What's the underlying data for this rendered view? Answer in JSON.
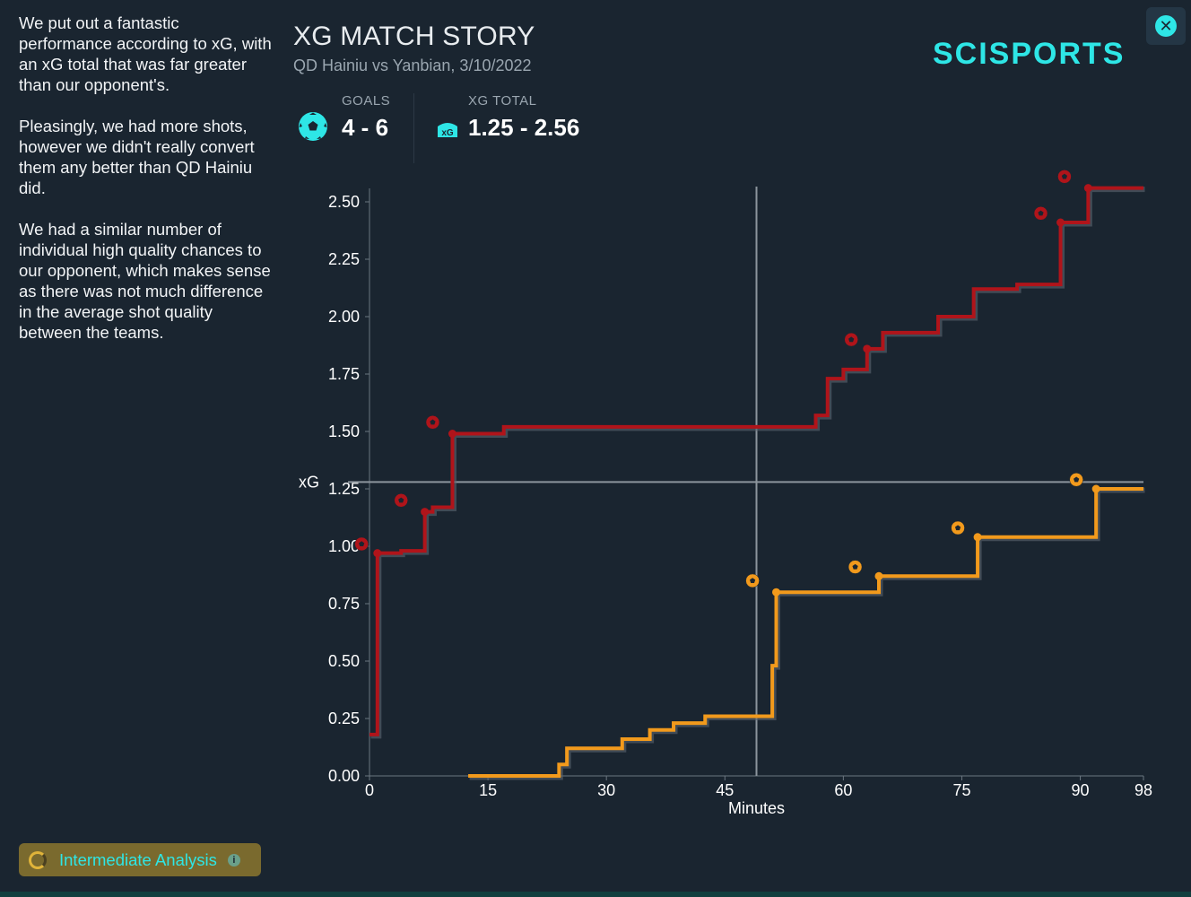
{
  "summary": {
    "paragraphs": [
      "We put out a fantastic performance according to xG, with an xG total that was far greater than our opponent's.",
      "Pleasingly, we had more shots, however we didn't really convert them any better than QD Hainiu did.",
      "We had a similar number of individual high quality chances to our opponent, which makes sense as there was not much difference in the average shot quality between the teams."
    ]
  },
  "header": {
    "title": "XG MATCH STORY",
    "subtitle": "QD Hainiu vs Yanbian, 3/10/2022",
    "goals_label": "GOALS",
    "goals_value": "4 - 6",
    "xg_label": "XG TOTAL",
    "xg_value": "1.25 - 2.56",
    "xg_icon_text": "xG"
  },
  "logo": {
    "text": "SCISPORTS"
  },
  "footer": {
    "level_label": "Intermediate Analysis",
    "info_glyph": "i"
  },
  "colors": {
    "accent": "#2ee6e6",
    "home": "#f29a1c",
    "away": "#b0141a",
    "background": "#1a2530"
  },
  "icons": {
    "close": "close-icon",
    "goals": "soccer-ball-icon",
    "xg": "goal-net-icon",
    "level": "progress-ring-icon",
    "info": "info-icon"
  },
  "chart_data": {
    "type": "line",
    "title": "XG MATCH STORY",
    "xlabel": "Minutes",
    "ylabel": "xG",
    "xlim": [
      0,
      98
    ],
    "ylim": [
      0,
      2.55
    ],
    "x_ticks": [
      0,
      15,
      30,
      45,
      60,
      75,
      90,
      98
    ],
    "y_ticks": [
      0.0,
      0.25,
      0.5,
      0.75,
      1.0,
      1.25,
      1.5,
      1.75,
      2.0,
      2.25,
      2.5
    ],
    "y_tick_labels": [
      "0.00",
      "0.25",
      "0.50",
      "0.75",
      "1.00",
      "1.25",
      "1.50",
      "1.75",
      "2.00",
      "2.25",
      "2.50"
    ],
    "crosshair": {
      "x": 49,
      "y": 1.28
    },
    "series": [
      {
        "name": "Yanbian",
        "color": "#b0141a",
        "steps": [
          [
            0,
            0.18
          ],
          [
            1,
            0.97
          ],
          [
            4,
            0.98
          ],
          [
            7,
            1.15
          ],
          [
            8,
            1.17
          ],
          [
            10.5,
            1.49
          ],
          [
            17,
            1.52
          ],
          [
            56.5,
            1.57
          ],
          [
            58,
            1.73
          ],
          [
            60,
            1.77
          ],
          [
            63,
            1.86
          ],
          [
            65,
            1.93
          ],
          [
            72,
            2.0
          ],
          [
            76.5,
            2.12
          ],
          [
            82,
            2.14
          ],
          [
            87.5,
            2.41
          ],
          [
            91,
            2.56
          ],
          [
            98,
            2.56
          ]
        ],
        "shot_points": [
          [
            1,
            0.97
          ],
          [
            7,
            1.15
          ],
          [
            10.5,
            1.49
          ],
          [
            63,
            1.86
          ],
          [
            87.5,
            2.41
          ],
          [
            91,
            2.56
          ]
        ],
        "goals": [
          [
            -1,
            1.01
          ],
          [
            4,
            1.2
          ],
          [
            8,
            1.54
          ],
          [
            61,
            1.9
          ],
          [
            85,
            2.45
          ],
          [
            88,
            2.61
          ]
        ]
      },
      {
        "name": "QD Hainiu",
        "color": "#f29a1c",
        "steps": [
          [
            12.5,
            0.0
          ],
          [
            24,
            0.05
          ],
          [
            25,
            0.12
          ],
          [
            32,
            0.16
          ],
          [
            35.5,
            0.2
          ],
          [
            38.5,
            0.23
          ],
          [
            42.5,
            0.26
          ],
          [
            51,
            0.48
          ],
          [
            51.5,
            0.8
          ],
          [
            64.5,
            0.87
          ],
          [
            77,
            1.04
          ],
          [
            92,
            1.25
          ],
          [
            98,
            1.25
          ]
        ],
        "shot_points": [
          [
            51.5,
            0.8
          ],
          [
            64.5,
            0.87
          ],
          [
            77,
            1.04
          ],
          [
            92,
            1.25
          ]
        ],
        "goals": [
          [
            48.5,
            0.85
          ],
          [
            61.5,
            0.91
          ],
          [
            74.5,
            1.08
          ],
          [
            89.5,
            1.29
          ]
        ]
      }
    ]
  }
}
